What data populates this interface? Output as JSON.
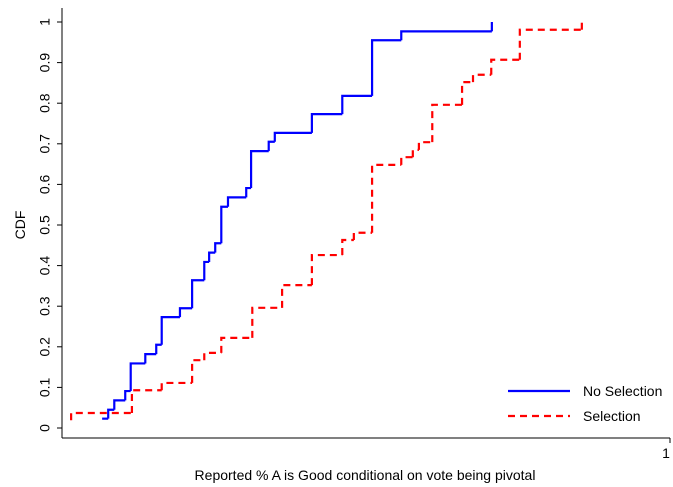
{
  "chart_data": {
    "type": "step",
    "x_label": "Reported % A is Good conditional on vote being pivotal",
    "y_label": "CDF",
    "xlim": [
      0,
      1
    ],
    "xticks": [
      1
    ],
    "ylim": [
      0,
      1
    ],
    "yticks": [
      0,
      0.1,
      0.2,
      0.3,
      0.4,
      0.5,
      0.6,
      0.7,
      0.8,
      0.9,
      1
    ],
    "legend": "lower right",
    "series": [
      {
        "name": "No Selection",
        "color": "#0000ff",
        "dash": false,
        "x": [
          0.066,
          0.076,
          0.086,
          0.104,
          0.113,
          0.137,
          0.155,
          0.164,
          0.194,
          0.214,
          0.234,
          0.242,
          0.252,
          0.262,
          0.273,
          0.303,
          0.311,
          0.34,
          0.35,
          0.411,
          0.461,
          0.51,
          0.558,
          0.707
        ],
        "values": [
          0.023,
          0.045,
          0.068,
          0.091,
          0.159,
          0.182,
          0.205,
          0.273,
          0.295,
          0.364,
          0.409,
          0.432,
          0.455,
          0.545,
          0.568,
          0.591,
          0.682,
          0.705,
          0.727,
          0.773,
          0.818,
          0.955,
          0.977,
          1.0
        ]
      },
      {
        "name": "Selection",
        "color": "#ff0000",
        "dash": true,
        "x": [
          0.015,
          0.015,
          0.115,
          0.164,
          0.214,
          0.234,
          0.262,
          0.313,
          0.362,
          0.411,
          0.461,
          0.48,
          0.51,
          0.558,
          0.577,
          0.587,
          0.609,
          0.658,
          0.676,
          0.706,
          0.753,
          0.855
        ],
        "values": [
          0.019,
          0.037,
          0.093,
          0.111,
          0.167,
          0.185,
          0.222,
          0.296,
          0.352,
          0.426,
          0.463,
          0.481,
          0.648,
          0.667,
          0.685,
          0.704,
          0.796,
          0.852,
          0.87,
          0.907,
          0.981,
          1.0
        ]
      }
    ]
  }
}
